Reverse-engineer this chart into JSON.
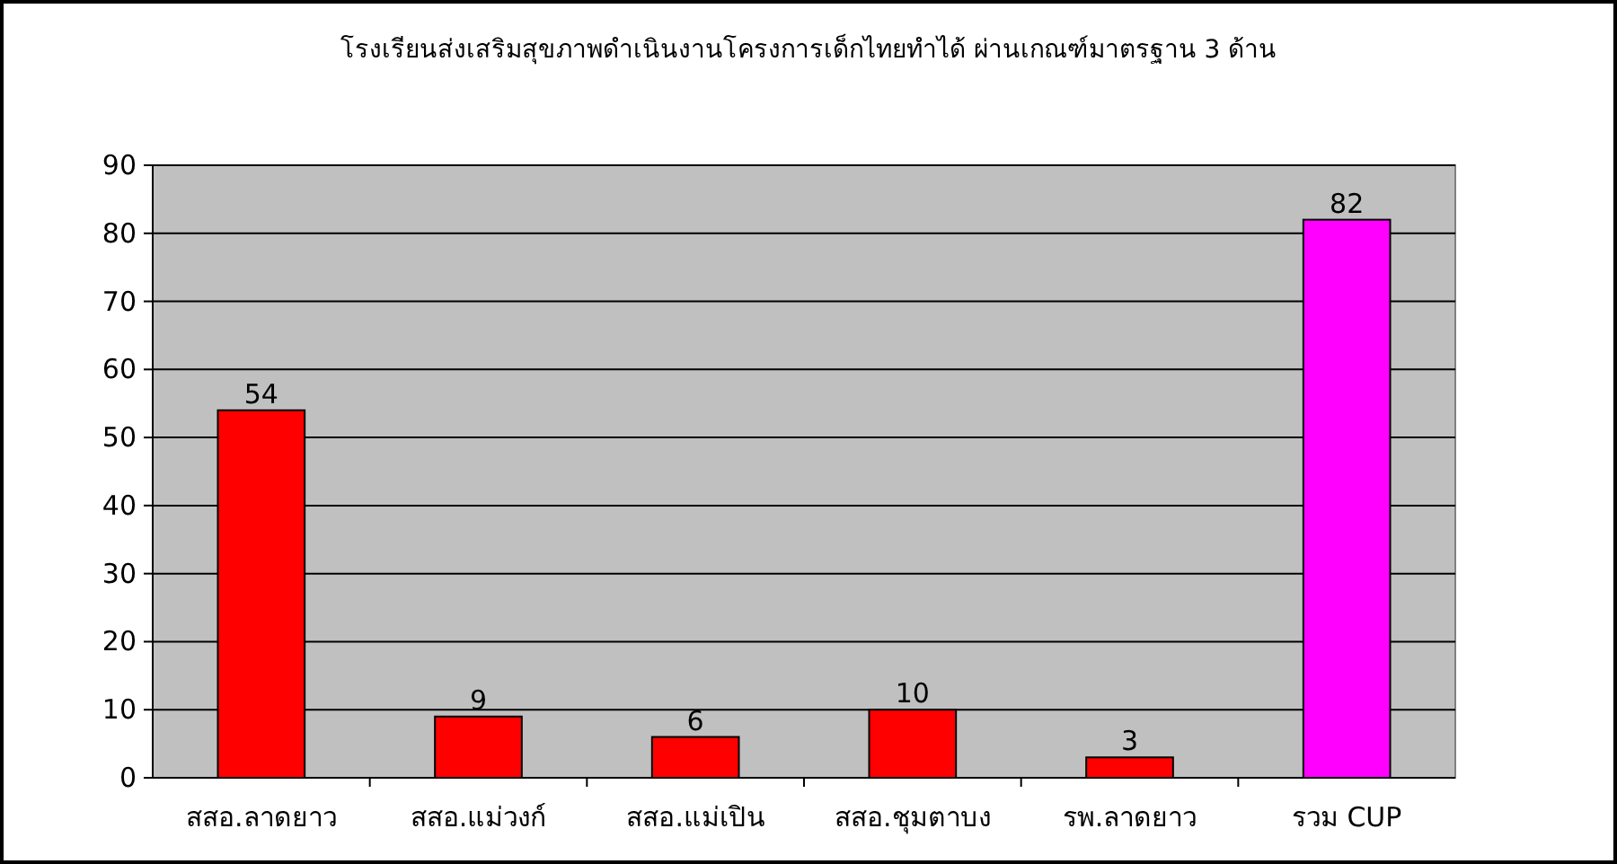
{
  "chart_data": {
    "type": "bar",
    "title": "โรงเรียนส่งเสริมสุขภาพดำเนินงานโครงการเด็กไทยทำได้ ผ่านเกณฑ์มาตรฐาน 3 ด้าน",
    "categories": [
      "สสอ.ลาดยาว",
      "สสอ.แม่วงก์",
      "สสอ.แม่เปิน",
      "สสอ.ชุมตาบง",
      "รพ.ลาดยาว",
      "รวม CUP"
    ],
    "values": [
      54,
      9,
      6,
      10,
      3,
      82
    ],
    "colors": [
      "#ff0000",
      "#ff0000",
      "#ff0000",
      "#ff0000",
      "#ff0000",
      "#ff00ff"
    ],
    "ylim": [
      0,
      90
    ],
    "yticks": [
      0,
      10,
      20,
      30,
      40,
      50,
      60,
      70,
      80,
      90
    ],
    "grid": "y",
    "data_labels": true
  }
}
